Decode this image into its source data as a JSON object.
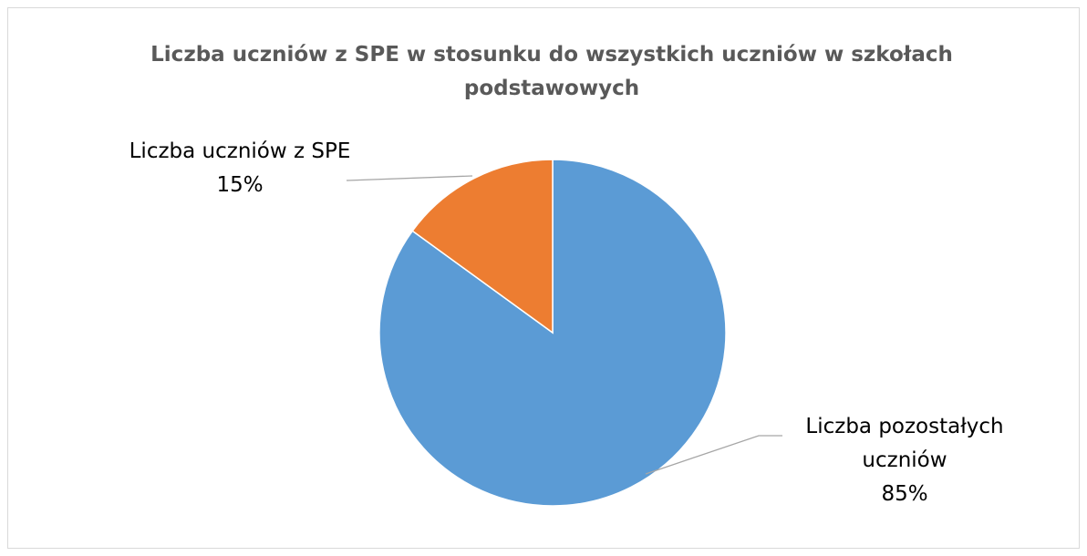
{
  "chart_data": {
    "type": "pie",
    "title": "Liczba uczniów z SPE w stosunku do wszystkich uczniów w szkołach podstawowych",
    "categories": [
      "Liczba pozostałych uczniów",
      "Liczba uczniów z SPE"
    ],
    "values": [
      85,
      15
    ],
    "value_labels": [
      "85%",
      "15%"
    ],
    "colors": [
      "#5b9bd5",
      "#ed7d31"
    ]
  }
}
